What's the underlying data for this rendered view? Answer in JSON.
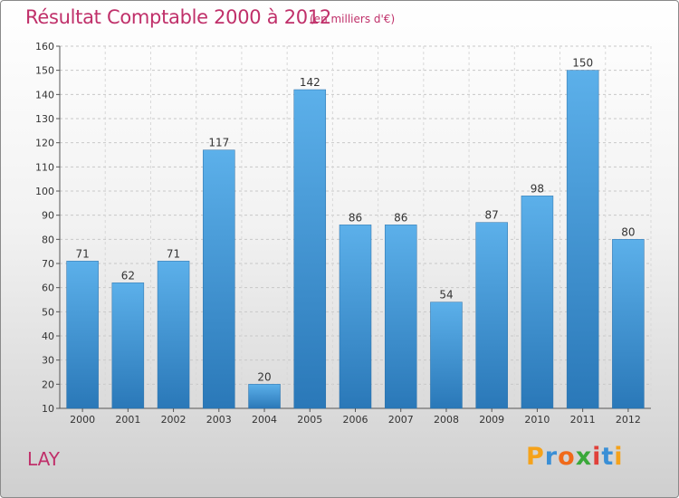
{
  "chart_data": {
    "type": "bar",
    "title": "Résultat Comptable 2000 à 2012",
    "subtitle": "(en milliers d'€)",
    "categories": [
      "2000",
      "2001",
      "2002",
      "2003",
      "2004",
      "2005",
      "2006",
      "2007",
      "2008",
      "2009",
      "2010",
      "2011",
      "2012"
    ],
    "values": [
      71,
      62,
      71,
      117,
      20,
      142,
      86,
      86,
      54,
      87,
      98,
      150,
      80
    ],
    "ylim": [
      10,
      160
    ],
    "yticks": [
      10,
      20,
      30,
      40,
      50,
      60,
      70,
      80,
      90,
      100,
      110,
      120,
      130,
      140,
      150,
      160
    ],
    "xlabel": "",
    "ylabel": "",
    "grid": true,
    "bar_color": "#4b9fdf"
  },
  "footer": {
    "commune": "LAY",
    "logo_letters": [
      "P",
      "r",
      "o",
      "x",
      "i",
      "t",
      "i"
    ],
    "logo_colors": [
      "#f5a21a",
      "#3a8fd6",
      "#f06a1a",
      "#3aa83a",
      "#e0403a",
      "#3a8fd6",
      "#f5a21a"
    ]
  }
}
